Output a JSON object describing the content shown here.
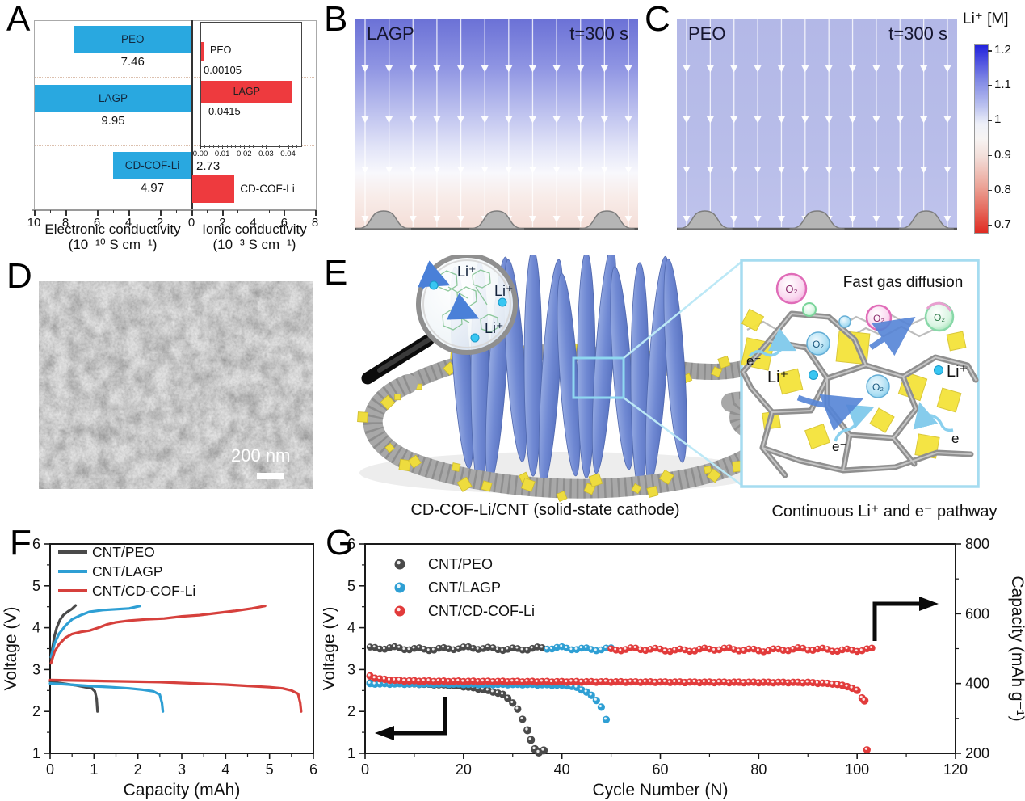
{
  "panels": {
    "a": {
      "letter": "A",
      "left_axis_label": "Electronic conductivity",
      "left_axis_unit": "(10⁻¹⁰ S cm⁻¹)",
      "right_axis_label": "Ionic conductivity",
      "right_axis_unit": "(10⁻³ S cm⁻¹)"
    },
    "b": {
      "letter": "B",
      "title": "LAGP",
      "time": "t=300 s"
    },
    "c": {
      "letter": "C",
      "title": "PEO",
      "time": "t=300 s"
    },
    "colorbar": {
      "title": "Li⁺ [M]",
      "ticks": [
        "1.2",
        "1.1",
        "1",
        "0.9",
        "0.8",
        "0.7"
      ]
    },
    "d": {
      "letter": "D",
      "scalebar": "200 nm"
    },
    "e": {
      "letter": "E",
      "caption_left": "CD-COF-Li/CNT (solid-state cathode)",
      "caption_right": "Continuous Li⁺ and e⁻ pathway",
      "inset_title": "Fast gas diffusion",
      "o2_label": "O₂",
      "li_label": "Li⁺",
      "e_label": "e⁻"
    },
    "f": {
      "letter": "F"
    },
    "g": {
      "letter": "G"
    }
  },
  "chart_data": [
    {
      "id": "conductivity-bars",
      "type": "bar",
      "orientation": "horizontal-diverging",
      "categories": [
        "PEO",
        "LAGP",
        "CD-COF-Li"
      ],
      "series": [
        {
          "name": "Electronic conductivity",
          "unit": "10⁻¹⁰ S cm⁻¹",
          "color": "#29a8e0",
          "values": [
            7.46,
            9.95,
            4.97
          ],
          "axis_range": [
            0,
            10
          ],
          "ticks": [
            10,
            8,
            6,
            4,
            2,
            0
          ],
          "direction": "left"
        },
        {
          "name": "Ionic conductivity",
          "unit": "10⁻³ S cm⁻¹",
          "color": "#ee3a3e",
          "values": [
            0.00105,
            0.0415,
            2.73
          ],
          "axis_range": [
            0,
            8
          ],
          "ticks": [
            2,
            4,
            6,
            8
          ],
          "direction": "right"
        }
      ],
      "value_labels_left": [
        "7.46",
        "9.95",
        "4.97"
      ],
      "value_labels_right": [
        "0.00105",
        "0.0415",
        "2.73"
      ],
      "inset": {
        "categories": [
          "PEO",
          "LAGP"
        ],
        "values": [
          0.00105,
          0.0415
        ],
        "value_labels": [
          "0.00105",
          "0.0415"
        ],
        "axis_range": [
          0,
          0.0457
        ],
        "ticks": [
          "0.00",
          "0.01",
          "0.02",
          "0.03",
          "0.04"
        ],
        "color": "#ee3a3e"
      }
    },
    {
      "id": "voltage-capacity",
      "type": "line",
      "xlabel": "Capacity (mAh)",
      "ylabel": "Voltage (V)",
      "xlim": [
        0,
        6
      ],
      "ylim": [
        1,
        6
      ],
      "x_ticks": [
        0,
        1,
        2,
        3,
        4,
        5,
        6
      ],
      "y_ticks": [
        1,
        2,
        3,
        4,
        5,
        6
      ],
      "legend_position": "top-left",
      "series": [
        {
          "name": "CNT/PEO",
          "color": "#4a4a4a",
          "charge": [
            [
              0.02,
              3.25
            ],
            [
              0.05,
              3.5
            ],
            [
              0.1,
              3.8
            ],
            [
              0.15,
              4.0
            ],
            [
              0.22,
              4.18
            ],
            [
              0.3,
              4.3
            ],
            [
              0.4,
              4.38
            ],
            [
              0.5,
              4.45
            ],
            [
              0.58,
              4.53
            ]
          ],
          "discharge": [
            [
              0,
              2.72
            ],
            [
              0.2,
              2.68
            ],
            [
              0.4,
              2.65
            ],
            [
              0.6,
              2.62
            ],
            [
              0.8,
              2.58
            ],
            [
              0.95,
              2.55
            ],
            [
              1.02,
              2.48
            ],
            [
              1.06,
              2.3
            ],
            [
              1.08,
              2.0
            ]
          ]
        },
        {
          "name": "CNT/LAGP",
          "color": "#2e9fd4",
          "charge": [
            [
              0.02,
              3.3
            ],
            [
              0.1,
              3.62
            ],
            [
              0.2,
              3.85
            ],
            [
              0.35,
              4.05
            ],
            [
              0.5,
              4.2
            ],
            [
              0.7,
              4.3
            ],
            [
              0.9,
              4.38
            ],
            [
              1.2,
              4.42
            ],
            [
              1.5,
              4.44
            ],
            [
              1.8,
              4.46
            ],
            [
              2.05,
              4.52
            ]
          ],
          "discharge": [
            [
              0,
              2.67
            ],
            [
              0.3,
              2.65
            ],
            [
              0.6,
              2.63
            ],
            [
              1.0,
              2.6
            ],
            [
              1.4,
              2.58
            ],
            [
              1.8,
              2.55
            ],
            [
              2.1,
              2.52
            ],
            [
              2.35,
              2.48
            ],
            [
              2.5,
              2.4
            ],
            [
              2.55,
              2.2
            ],
            [
              2.57,
              2.0
            ]
          ]
        },
        {
          "name": "CNT/CD-COF-Li",
          "color": "#d6403c",
          "charge": [
            [
              0.02,
              3.15
            ],
            [
              0.1,
              3.42
            ],
            [
              0.2,
              3.6
            ],
            [
              0.35,
              3.76
            ],
            [
              0.5,
              3.85
            ],
            [
              0.7,
              3.9
            ],
            [
              0.9,
              3.93
            ],
            [
              1.1,
              4.0
            ],
            [
              1.3,
              4.08
            ],
            [
              1.5,
              4.13
            ],
            [
              1.8,
              4.17
            ],
            [
              2.2,
              4.2
            ],
            [
              2.6,
              4.22
            ],
            [
              3.0,
              4.27
            ],
            [
              3.4,
              4.3
            ],
            [
              3.8,
              4.35
            ],
            [
              4.2,
              4.4
            ],
            [
              4.6,
              4.46
            ],
            [
              4.9,
              4.52
            ]
          ],
          "discharge": [
            [
              0,
              2.75
            ],
            [
              0.5,
              2.74
            ],
            [
              1.0,
              2.73
            ],
            [
              1.5,
              2.72
            ],
            [
              2.0,
              2.71
            ],
            [
              2.5,
              2.7
            ],
            [
              3.0,
              2.68
            ],
            [
              3.5,
              2.66
            ],
            [
              4.0,
              2.64
            ],
            [
              4.5,
              2.61
            ],
            [
              5.0,
              2.58
            ],
            [
              5.3,
              2.55
            ],
            [
              5.5,
              2.5
            ],
            [
              5.65,
              2.42
            ],
            [
              5.7,
              2.2
            ],
            [
              5.72,
              2.0
            ]
          ]
        }
      ]
    },
    {
      "id": "cycling",
      "type": "scatter",
      "xlabel": "Cycle Number (N)",
      "ylabel_left": "Voltage (V)",
      "ylabel_right": "Capacity (mAh g⁻¹)",
      "xlim": [
        0,
        120
      ],
      "ylim_left": [
        1,
        6
      ],
      "ylim_right": [
        200,
        800
      ],
      "x_ticks": [
        0,
        20,
        40,
        60,
        80,
        100,
        120
      ],
      "y_ticks_left": [
        1,
        2,
        3,
        4,
        5,
        6
      ],
      "y_ticks_right": [
        200,
        400,
        600,
        800
      ],
      "series": [
        {
          "name": "CNT/PEO",
          "color": "#4a4a4a",
          "capacity": {
            "cycles": [
              1,
              37
            ],
            "value": 500,
            "tail": []
          },
          "voltage_profile": [
            [
              1,
              2.67
            ],
            [
              12,
              2.65
            ],
            [
              18,
              2.62
            ],
            [
              21,
              2.58
            ],
            [
              24,
              2.52
            ],
            [
              26,
              2.47
            ],
            [
              28,
              2.4
            ],
            [
              29,
              2.32
            ],
            [
              30,
              2.2
            ],
            [
              31,
              2.05
            ],
            [
              32,
              1.82
            ]
          ],
          "voltage_tail": [
            [
              33,
              1.55
            ],
            [
              33.7,
              1.32
            ],
            [
              34.5,
              1.1
            ],
            [
              35.3,
              1.02
            ],
            [
              36.3,
              1.07
            ]
          ]
        },
        {
          "name": "CNT/LAGP",
          "color": "#2e9fd4",
          "capacity": {
            "cycles": [
              37,
              50
            ],
            "value": 500,
            "tail": []
          },
          "voltage_profile": [
            [
              1,
              2.66
            ],
            [
              20,
              2.65
            ],
            [
              35,
              2.64
            ],
            [
              41,
              2.62
            ],
            [
              43,
              2.57
            ],
            [
              44,
              2.52
            ],
            [
              45,
              2.46
            ],
            [
              46,
              2.38
            ],
            [
              47,
              2.27
            ],
            [
              48,
              2.1
            ],
            [
              49,
              1.8
            ]
          ],
          "voltage_tail": []
        },
        {
          "name": "CNT/CD-COF-Li",
          "color": "#e23b3b",
          "capacity": {
            "cycles": [
              50,
              103
            ],
            "value": 497,
            "tail": [
              [
                102,
                210
              ]
            ]
          },
          "voltage_profile": [
            [
              1,
              2.84
            ],
            [
              2,
              2.8
            ],
            [
              4,
              2.76
            ],
            [
              8,
              2.73
            ],
            [
              15,
              2.72
            ],
            [
              60,
              2.7
            ],
            [
              90,
              2.69
            ],
            [
              95,
              2.66
            ],
            [
              98,
              2.6
            ],
            [
              100,
              2.5
            ],
            [
              101,
              2.33
            ]
          ],
          "voltage_tail": [
            [
              101.5,
              2.26
            ]
          ]
        }
      ]
    }
  ]
}
